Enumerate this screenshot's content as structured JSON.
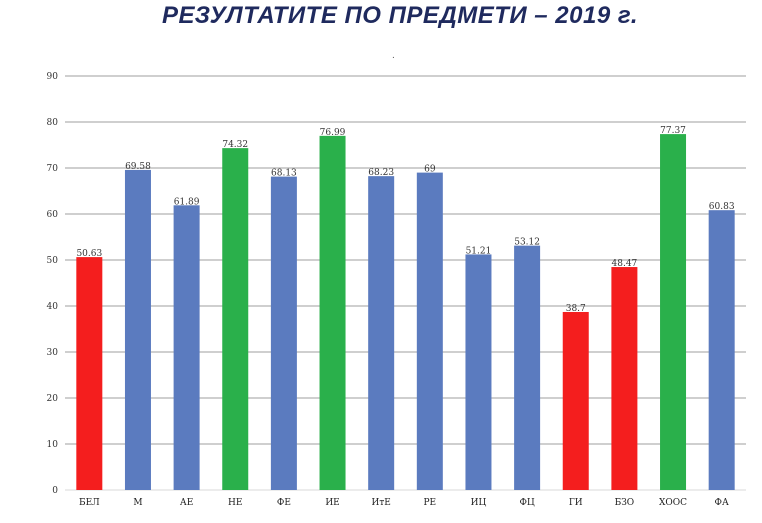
{
  "title": "РЕЗУЛТАТИТЕ ПО ПРЕДМЕТИ – 2019 г.",
  "subtitle_mark": ".",
  "colors": {
    "blue": "#5b7bbf",
    "green": "#2ab04b",
    "red": "#f41e1e",
    "grid": "#bfbfbf"
  },
  "chart_data": {
    "type": "bar",
    "title": "РЕЗУЛТАТИТЕ ПО ПРЕДМЕТИ – 2019 г.",
    "xlabel": "",
    "ylabel": "",
    "ylim": [
      0,
      90
    ],
    "yticks": [
      0,
      10,
      20,
      30,
      40,
      50,
      60,
      70,
      80,
      90
    ],
    "grid": true,
    "legend": "none",
    "categories": [
      "БЕЛ",
      "М",
      "АЕ",
      "НЕ",
      "ФЕ",
      "ИЕ",
      "ИтЕ",
      "РЕ",
      "ИЦ",
      "ФЦ",
      "ГИ",
      "БЗО",
      "ХООС",
      "ФА"
    ],
    "values": [
      50.63,
      69.58,
      61.89,
      74.32,
      68.13,
      76.99,
      68.23,
      69,
      51.21,
      53.12,
      38.7,
      48.47,
      77.37,
      60.83
    ],
    "value_labels": [
      "50.63",
      "69.58",
      "61.89",
      "74.32",
      "68.13",
      "76.99",
      "68.23",
      "69",
      "51.21",
      "53.12",
      "38.7",
      "48.47",
      "77.37",
      "60.83"
    ],
    "bar_colors": [
      "red",
      "blue",
      "blue",
      "green",
      "blue",
      "green",
      "blue",
      "blue",
      "blue",
      "blue",
      "red",
      "red",
      "green",
      "blue"
    ]
  }
}
